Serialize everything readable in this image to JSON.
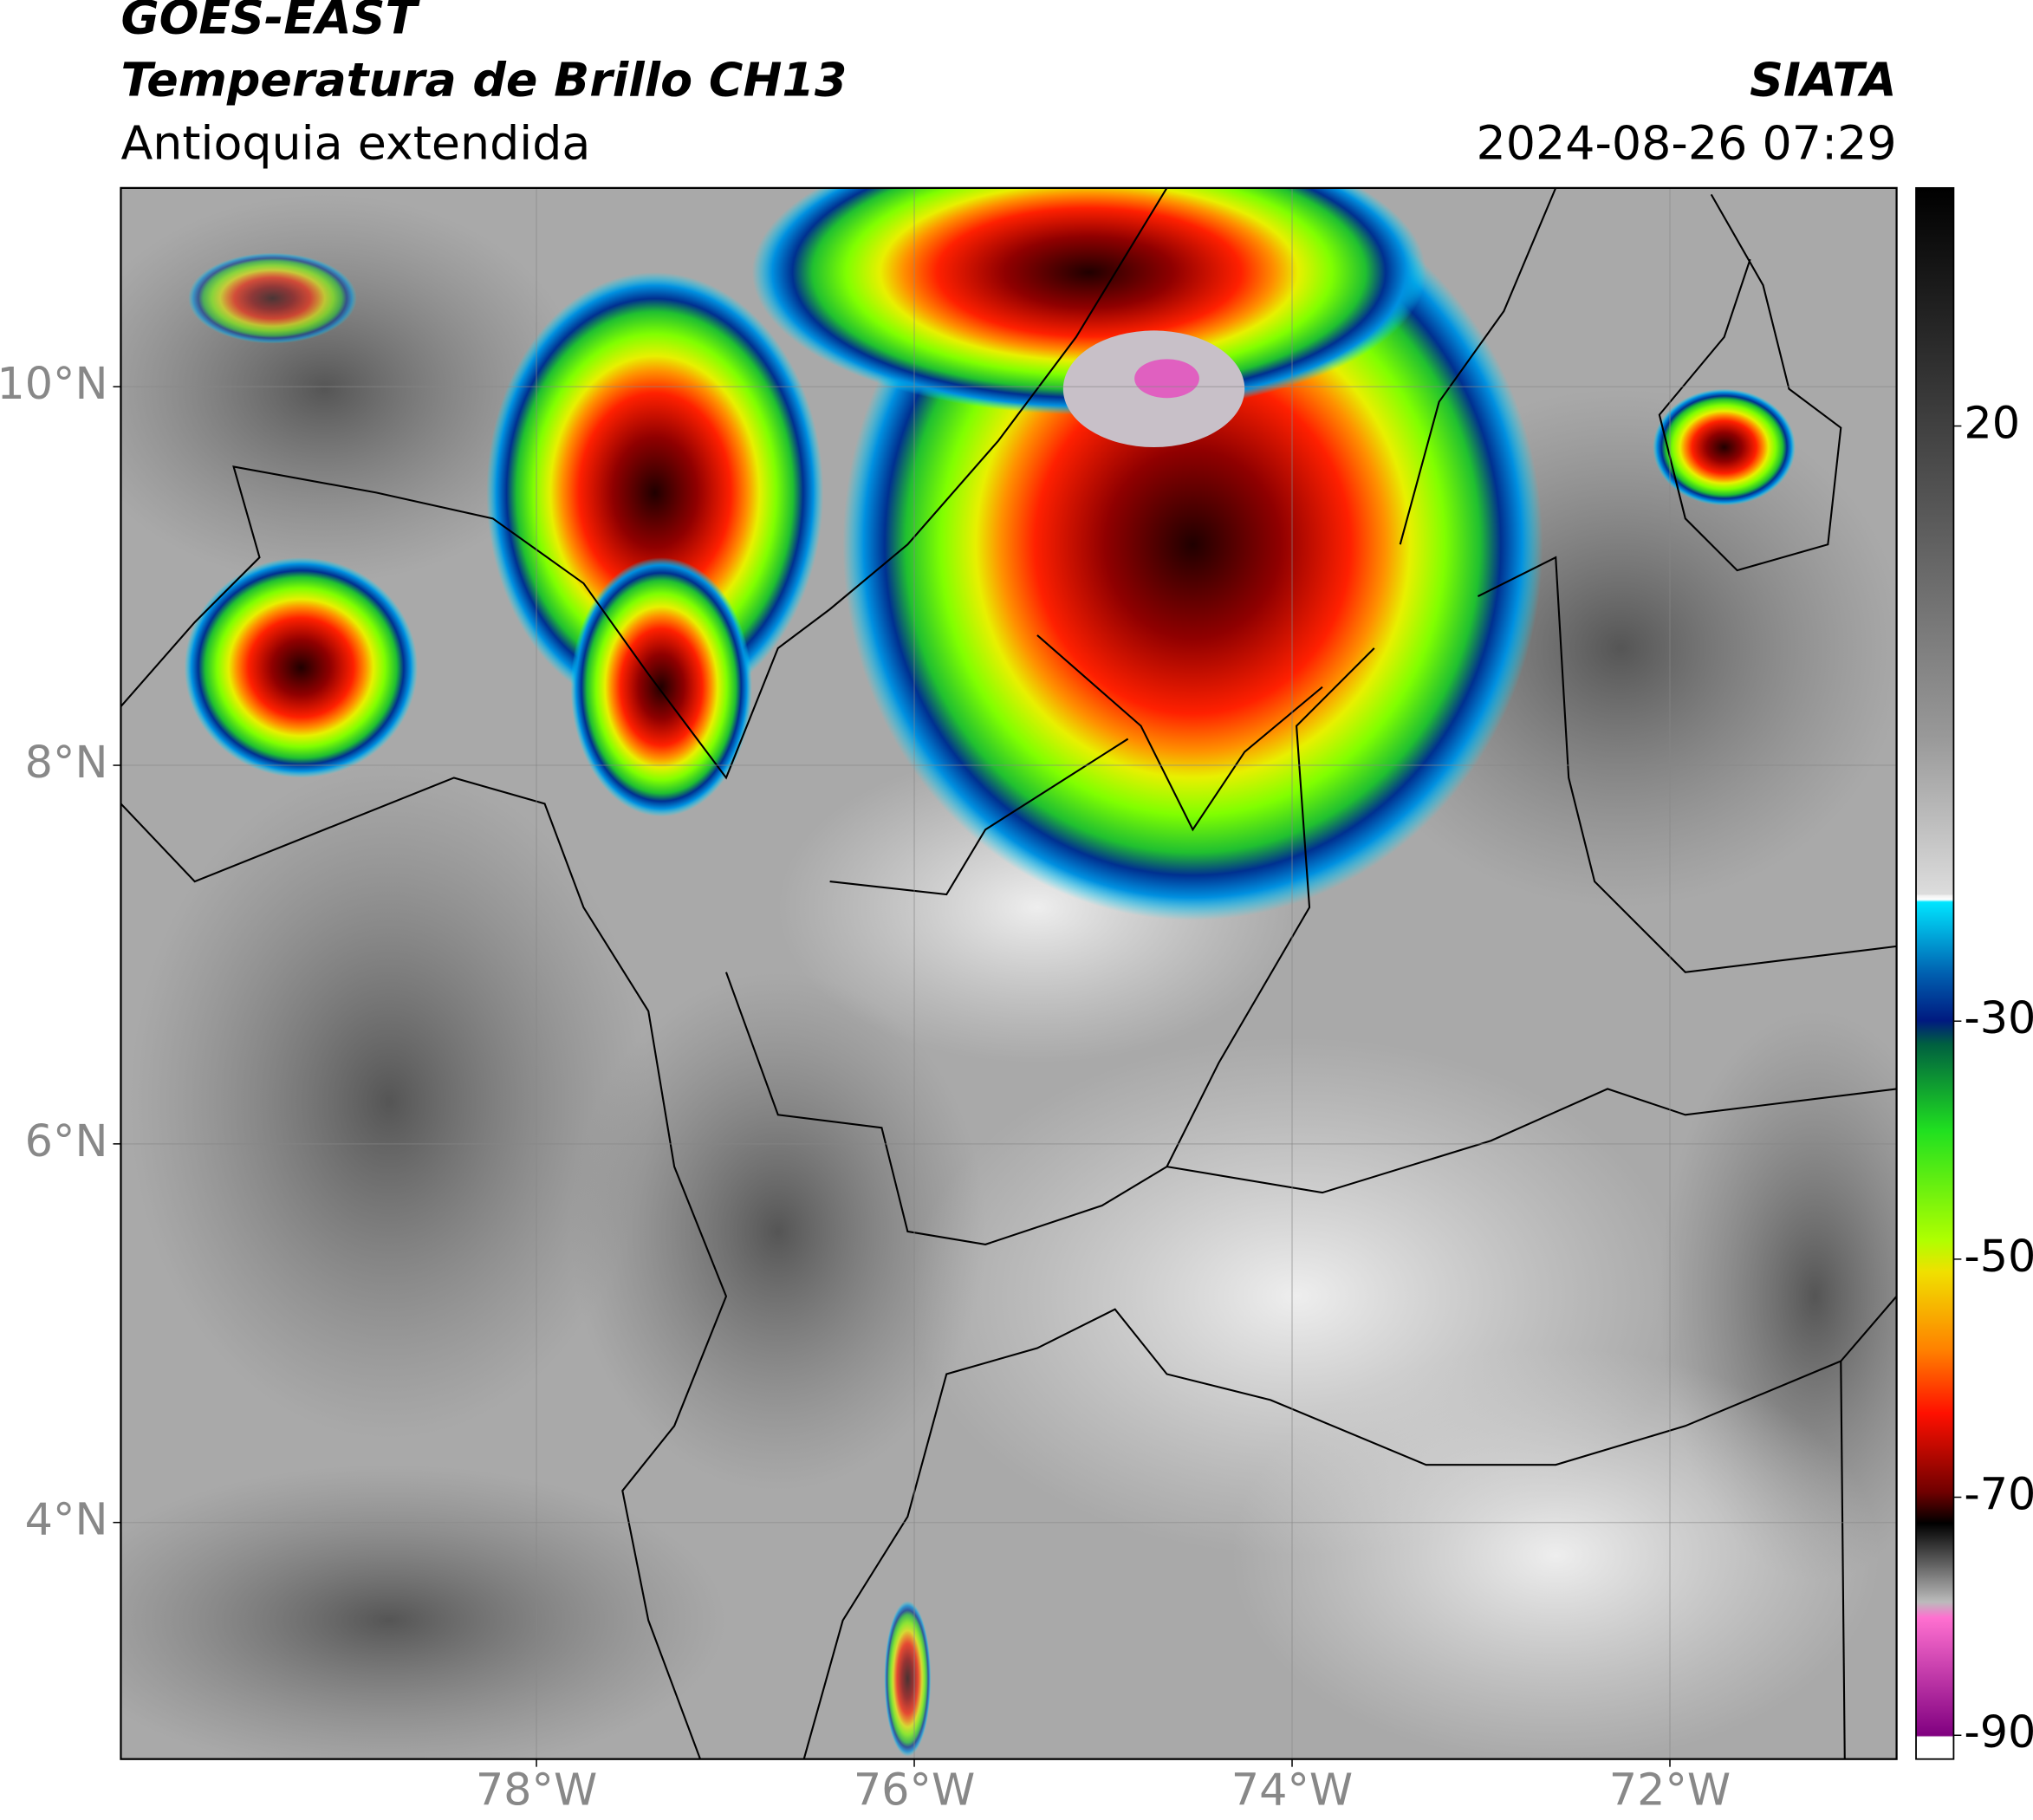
{
  "header": {
    "title": "GOES-EAST",
    "subtitle": "Temperatura de Brillo CH13",
    "region": "Antioquia extendida",
    "source": "SIATA",
    "timestamp": "2024-08-26 07:29"
  },
  "map": {
    "xlim": [
      -80.2,
      -70.8
    ],
    "ylim": [
      2.75,
      11.05
    ],
    "xticks": [
      {
        "value": -78,
        "label": "78°W"
      },
      {
        "value": -76,
        "label": "76°W"
      },
      {
        "value": -74,
        "label": "74°W"
      },
      {
        "value": -72,
        "label": "72°W"
      }
    ],
    "yticks": [
      {
        "value": 10,
        "label": "10°N"
      },
      {
        "value": 8,
        "label": "8°N"
      },
      {
        "value": 6,
        "label": "6°N"
      },
      {
        "value": 4,
        "label": "4°N"
      }
    ],
    "grid": true
  },
  "colorbar": {
    "lim": [
      -92,
      40
    ],
    "ticks": [
      20,
      -30,
      -50,
      -70,
      -90
    ]
  }
}
